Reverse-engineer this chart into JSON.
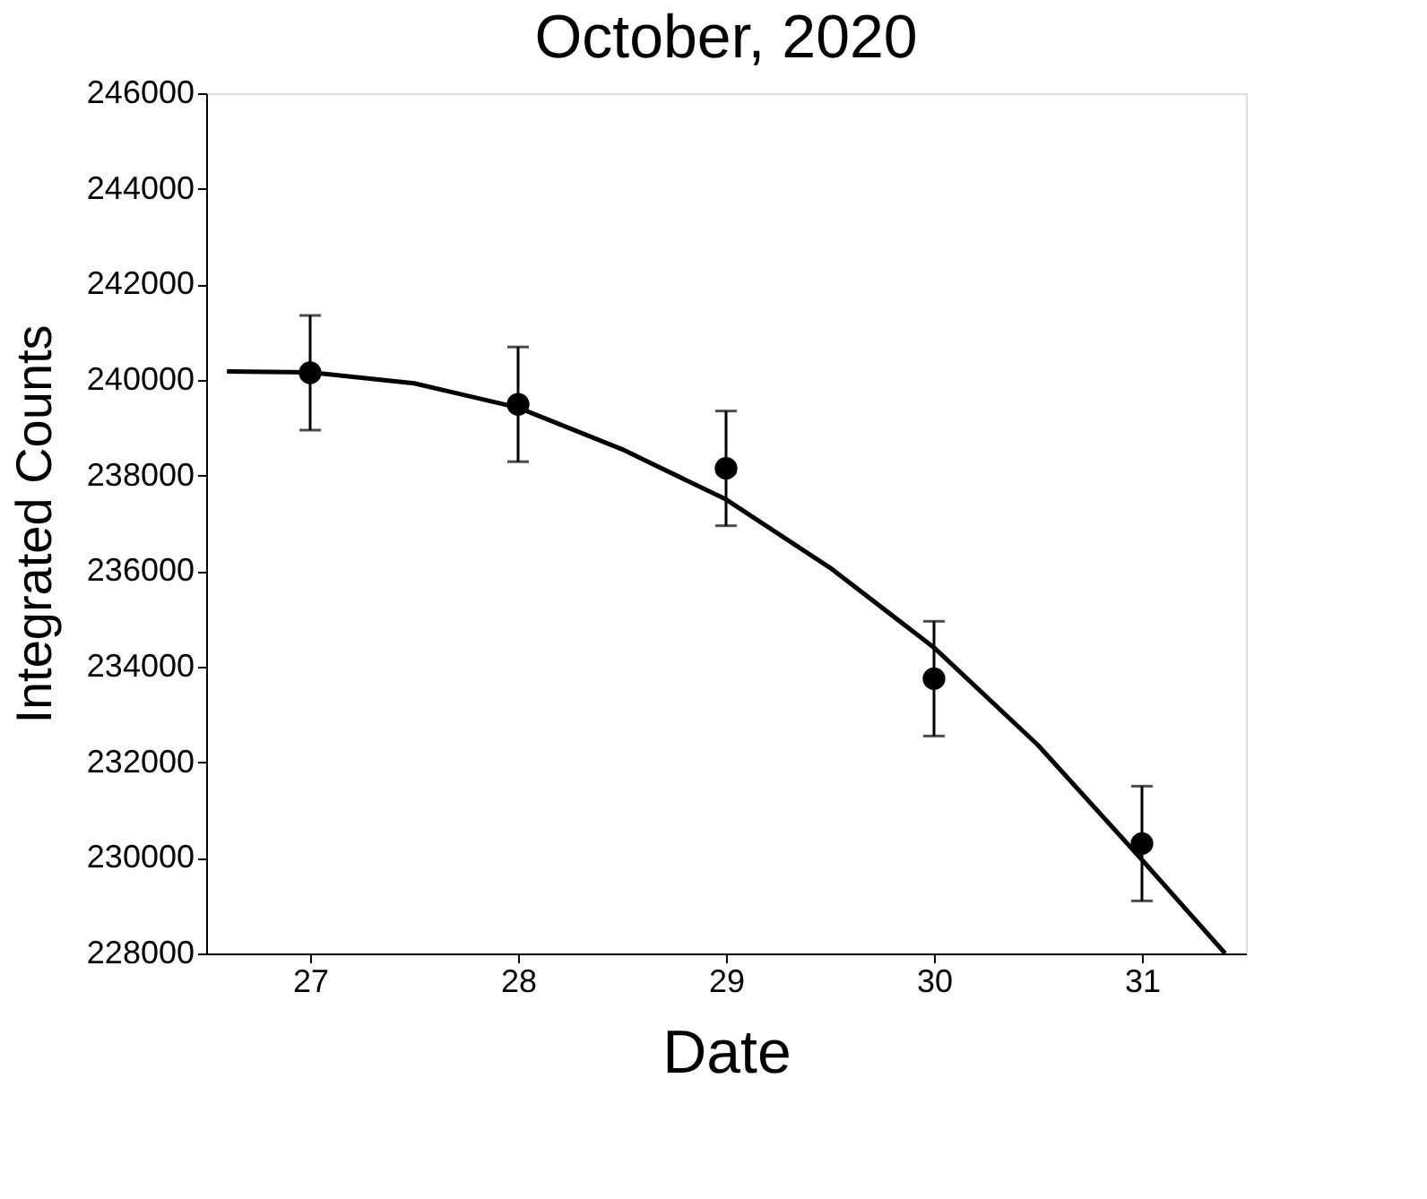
{
  "chart_data": {
    "type": "scatter",
    "title": "October, 2020",
    "xlabel": "Date",
    "ylabel": "Integrated Counts",
    "xlim": [
      26.5,
      31.5
    ],
    "xticks": [
      27,
      28,
      29,
      30,
      31
    ],
    "ylim": [
      228000,
      246000
    ],
    "yticks": [
      228000,
      230000,
      232000,
      234000,
      236000,
      238000,
      240000,
      242000,
      244000,
      246000
    ],
    "grid": false,
    "series": [
      {
        "color": "#000000",
        "marker": "circle",
        "x": [
          27,
          28,
          29,
          30,
          31
        ],
        "values": [
          240150,
          239490,
          238150,
          233750,
          230300
        ],
        "errors": [
          1200,
          1200,
          1200,
          1200,
          1200
        ]
      },
      {
        "type": "line",
        "color": "#000000",
        "line_style": "solid",
        "x": [
          26.6,
          27,
          27.5,
          28,
          28.5,
          29,
          29.5,
          30,
          30.5,
          31,
          31.4
        ],
        "values": [
          240180,
          240160,
          239930,
          239420,
          238550,
          237500,
          236070,
          234400,
          232360,
          229960,
          228000
        ]
      }
    ]
  }
}
